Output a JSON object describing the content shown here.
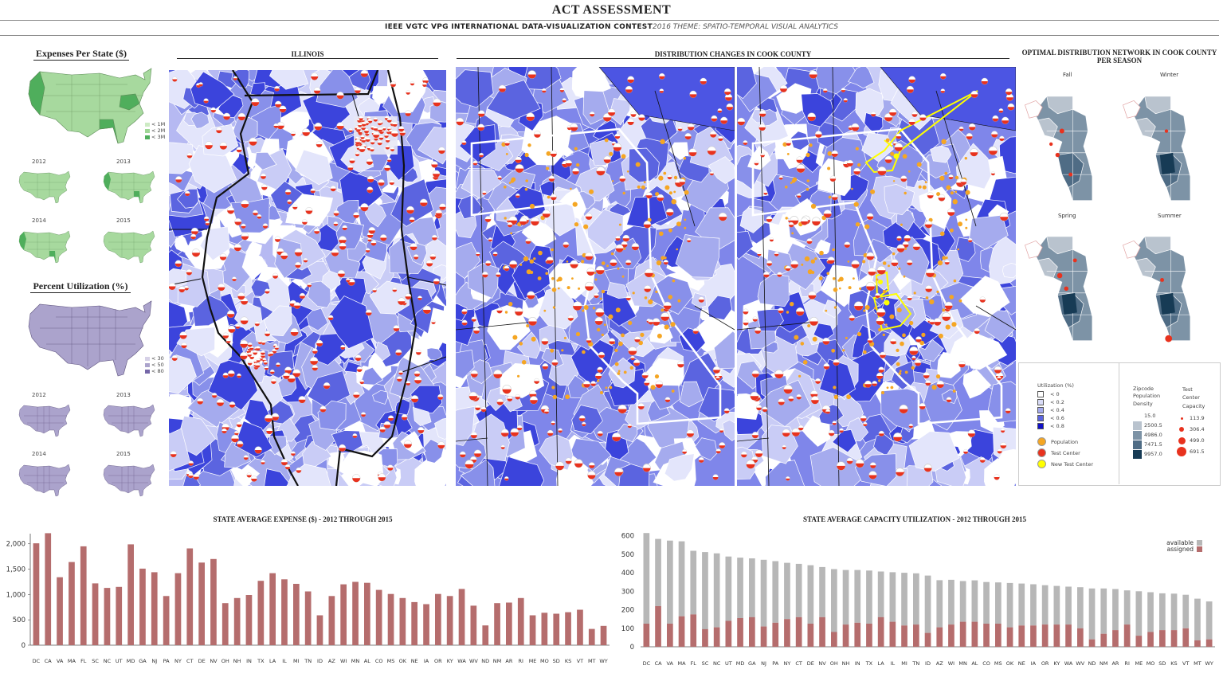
{
  "header": {
    "title": "ACT ASSESSMENT",
    "subtitle_bold": "IEEE VGTC VPG INTERNATIONAL DATA-VISUALIZATION CONTEST",
    "subtitle_italic": "2016 THEME: SPATIO-TEMPORAL VISUAL ANALYTICS"
  },
  "left": {
    "expenses_title": "Expenses Per State ($)",
    "expenses_legend": [
      "< 1M",
      "< 2M",
      "< 3M"
    ],
    "utilization_title": "Percent Utilization (%)",
    "utilization_legend": [
      "< 30",
      "< 50",
      "< 80"
    ],
    "years": [
      "2012",
      "2013",
      "2014",
      "2015"
    ],
    "colors": {
      "green": [
        "#cdebc4",
        "#9fd796",
        "#4fae5c"
      ],
      "purple": [
        "#d6d1e7",
        "#aba3cc",
        "#7567a8"
      ]
    }
  },
  "illinois": {
    "title": "ILLINOIS"
  },
  "cook": {
    "title": "DISTRIBUTION CHANGES IN COOK COUNTY"
  },
  "optimal": {
    "title": "OPTIMAL DISTRIBUTION NETWORK IN COOK COUNTY PER SEASON",
    "seasons": [
      "Fall",
      "Winter",
      "Spring",
      "Summer"
    ]
  },
  "legend": {
    "utilization_title": "Utilization (%)",
    "utilization_items": [
      "< 0",
      "< 0.2",
      "< 0.4",
      "< 0.6",
      "< 0.8"
    ],
    "utilization_colors": [
      "#ffffff",
      "#d9dcf7",
      "#a5abee",
      "#5b64e0",
      "#1010c8"
    ],
    "marks": [
      "Population",
      "Test Center",
      "New Test Center"
    ],
    "mark_colors": [
      "#f5a623",
      "#e8321e",
      "#ffff00"
    ],
    "density_title": "Zipcode Population Density",
    "density_items": [
      "15.0",
      "2500.5",
      "4986.0",
      "7471.5",
      "9957.0"
    ],
    "density_colors": [
      "#ffffff",
      "#b9c3ce",
      "#7d93a6",
      "#4f6c85",
      "#173b55"
    ],
    "capacity_title": "Test Center Capacity",
    "capacity_items": [
      "113.9",
      "306.4",
      "499.0",
      "691.5"
    ]
  },
  "chart_data": [
    {
      "type": "bar",
      "title": "STATE AVERAGE EXPENSE ($) - 2012 THROUGH 2015",
      "categories": [
        "DC",
        "CA",
        "VA",
        "MA",
        "FL",
        "SC",
        "NC",
        "UT",
        "MD",
        "GA",
        "NJ",
        "PA",
        "NY",
        "CT",
        "DE",
        "NV",
        "OH",
        "NH",
        "IN",
        "TX",
        "LA",
        "IL",
        "MI",
        "TN",
        "ID",
        "AZ",
        "WI",
        "MN",
        "AL",
        "CO",
        "MS",
        "OK",
        "NE",
        "IA",
        "OR",
        "KY",
        "WA",
        "WV",
        "ND",
        "NM",
        "AR",
        "RI",
        "ME",
        "MO",
        "SD",
        "KS",
        "VT",
        "MT",
        "WY"
      ],
      "values": [
        2010,
        2210,
        1340,
        1640,
        1950,
        1220,
        1130,
        1150,
        1990,
        1510,
        1440,
        970,
        1420,
        1910,
        1630,
        1700,
        830,
        930,
        990,
        1270,
        1420,
        1300,
        1210,
        1060,
        590,
        970,
        1200,
        1250,
        1230,
        1090,
        1010,
        930,
        850,
        810,
        1010,
        970,
        1110,
        780,
        390,
        830,
        840,
        930,
        590,
        640,
        620,
        650,
        700,
        320,
        380
      ],
      "xlabel": "",
      "ylabel": "",
      "ylim": [
        0,
        2200
      ],
      "yticks": [
        "0",
        "500",
        "1,000",
        "1,500",
        "2,000"
      ],
      "color": "#b56d6d"
    },
    {
      "type": "bar",
      "title": "STATE AVERAGE CAPACITY UTILIZATION - 2012 THROUGH 2015",
      "categories": [
        "DC",
        "CA",
        "VA",
        "MA",
        "FL",
        "SC",
        "NC",
        "UT",
        "MD",
        "GA",
        "NJ",
        "PA",
        "NY",
        "CT",
        "DE",
        "NV",
        "OH",
        "NH",
        "IN",
        "TX",
        "LA",
        "IL",
        "MI",
        "TN",
        "ID",
        "AZ",
        "WI",
        "MN",
        "AL",
        "CO",
        "MS",
        "OK",
        "NE",
        "IA",
        "OR",
        "KY",
        "WA",
        "WV",
        "ND",
        "NM",
        "AR",
        "RI",
        "ME",
        "MO",
        "SD",
        "KS",
        "VT",
        "MT",
        "WY"
      ],
      "series": [
        {
          "name": "assigned",
          "color": "#b56d6d",
          "values": [
            125,
            220,
            125,
            165,
            175,
            95,
            105,
            140,
            155,
            160,
            110,
            130,
            150,
            160,
            125,
            160,
            80,
            120,
            130,
            125,
            160,
            135,
            115,
            120,
            75,
            105,
            120,
            135,
            135,
            125,
            125,
            105,
            115,
            115,
            120,
            120,
            120,
            100,
            40,
            70,
            90,
            120,
            60,
            80,
            90,
            90,
            100,
            35,
            40
          ]
        },
        {
          "name": "available",
          "color": "#b7b7b7",
          "values": [
            615,
            583,
            574,
            570,
            519,
            512,
            505,
            488,
            482,
            478,
            470,
            463,
            454,
            448,
            441,
            431,
            420,
            415,
            415,
            412,
            407,
            403,
            400,
            397,
            385,
            360,
            362,
            355,
            359,
            350,
            348,
            345,
            342,
            338,
            333,
            329,
            325,
            322,
            315,
            315,
            312,
            305,
            300,
            295,
            289,
            287,
            281,
            260,
            245
          ]
        }
      ],
      "legend": [
        "available",
        "assigned"
      ],
      "ylim": [
        0,
        620
      ],
      "yticks": [
        "0",
        "100",
        "200",
        "300",
        "400",
        "500",
        "600"
      ]
    }
  ]
}
